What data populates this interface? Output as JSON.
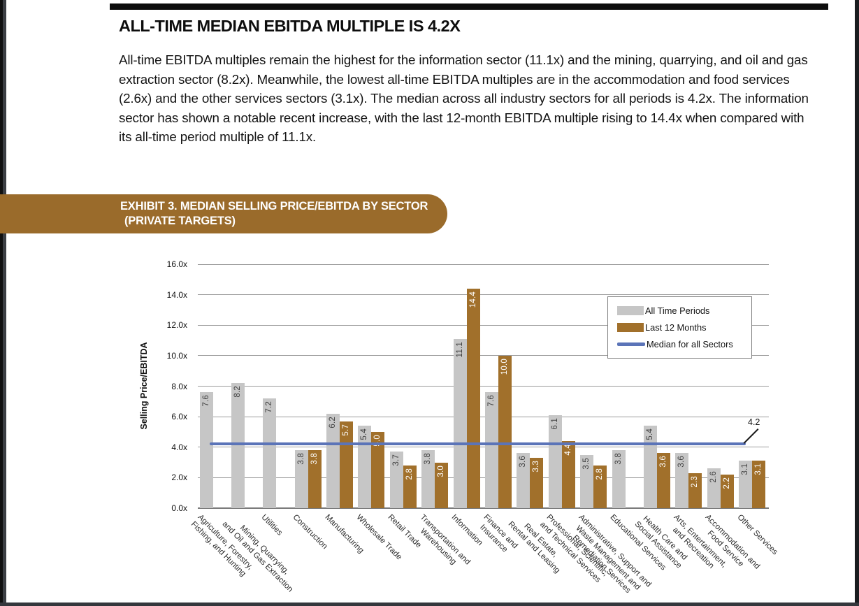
{
  "page": {
    "title": "ALL-TIME MEDIAN EBITDA MULTIPLE IS 4.2X",
    "body_text": "All-time EBITDA multiples remain the highest for the information sector (11.1x) and the mining, quarrying, and oil and gas extraction sector (8.2x). Meanwhile, the lowest all-time EBITDA multiples are in the accommodation and food services (2.6x) and the other services sectors (3.1x). The median across all industry sectors for all periods is 4.2x. The information sector has shown a notable recent increase, with the last 12-month EBITDA multiple rising to 14.4x when compared with its all-time period multiple of 11.1x."
  },
  "exhibit_banner": {
    "line1": "EXHIBIT 3. MEDIAN SELLING PRICE/EBITDA BY SECTOR",
    "line2": "(PRIVATE TARGETS)",
    "bg_color": "#9A6B2B",
    "text_color": "#FFFFFF"
  },
  "chart_data": {
    "type": "bar",
    "title": "",
    "xlabel": "",
    "ylabel": "Selling Price/EBITDA",
    "ylim": [
      0,
      16
    ],
    "y_tick_step": 2,
    "y_ticks": [
      "0.0x",
      "2.0x",
      "4.0x",
      "6.0x",
      "8.0x",
      "10.0x",
      "12.0x",
      "14.0x",
      "16.0x"
    ],
    "grid": true,
    "legend_position": "upper-right",
    "categories": [
      "Agriculture, Forestry,\nFishing, and Hunting",
      "Mining, Quarrying,\nand Oil and Gas Extraction",
      "Utilities",
      "Construction",
      "Manufacturing",
      "Wholesale Trade",
      "Retail Trade",
      "Transportation and\nWarehousing",
      "Information",
      "Finance and\nInsurance",
      "Real Estate,\nRental and Leasing",
      "Professional, Scientific,\nand Technical Services",
      "Administrative, Support and\nWaste Management and\nRemediation Services",
      "Educational Services",
      "Health Care and\nSocial Assistance",
      "Arts, Entertainment,\nand Recreation",
      "Accommodation and\nFood Service",
      "Other Services"
    ],
    "series": [
      {
        "name": "All Time Periods",
        "color": "#C6C6C6",
        "label_color": "#3F3F3F",
        "values": [
          7.6,
          8.2,
          7.2,
          3.8,
          6.2,
          5.4,
          3.7,
          3.8,
          11.1,
          7.6,
          3.6,
          6.1,
          3.5,
          3.8,
          5.4,
          3.6,
          2.6,
          3.1
        ]
      },
      {
        "name": "Last 12 Months",
        "color": "#A1702B",
        "label_color": "#FFFFFF",
        "values": [
          null,
          null,
          null,
          3.8,
          5.7,
          5.0,
          2.8,
          3.0,
          14.4,
          10.0,
          3.3,
          4.4,
          2.8,
          null,
          3.6,
          2.3,
          2.2,
          3.1
        ]
      }
    ],
    "median_line": {
      "name": "Median for all Sectors",
      "value": 4.2,
      "label": "4.2",
      "color": "#5B74B8"
    }
  }
}
